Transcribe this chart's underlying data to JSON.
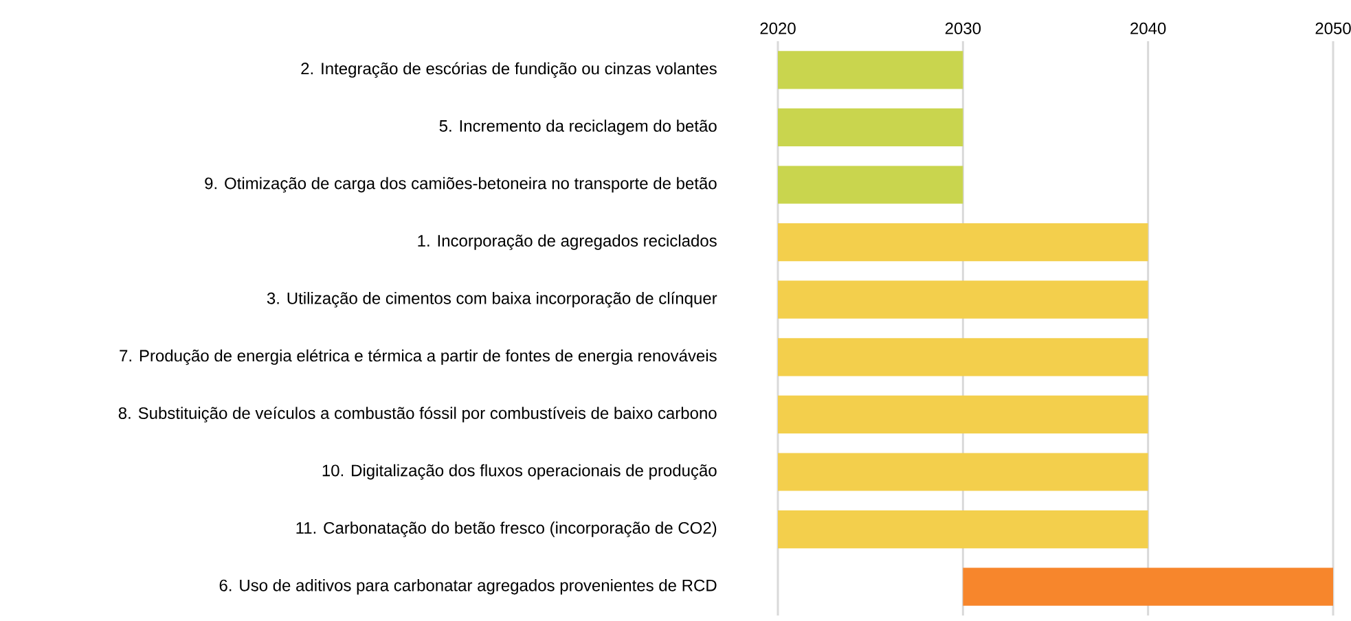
{
  "chart_data": {
    "type": "bar",
    "orientation": "horizontal",
    "categories": [
      "2. Integração de escórias de fundição ou cinzas volantes",
      "5. Incremento da reciclagem do betão",
      "9. Otimização de carga dos camiões-betoneira no transporte de betão",
      "1. Incorporação de agregados reciclados",
      "3. Utilização de cimentos com baixa incorporação de clínquer",
      "7. Produção de energia elétrica e térmica a partir de fontes de energia renováveis",
      "8. Substituição de veículos a combustão fóssil por combustíveis de baixo carbono",
      "10. Digitalização dos fluxos operacionais de produção",
      "11. Carbonatação do betão fresco (incorporação de CO2)",
      "6. Uso de aditivos para carbonatar agregados provenientes de RCD"
    ],
    "base": [
      2020,
      2020,
      2020,
      2020,
      2020,
      2020,
      2020,
      2020,
      2020,
      2030
    ],
    "values": [
      10,
      10,
      10,
      20,
      20,
      20,
      20,
      20,
      20,
      20
    ],
    "colors": [
      "#c9d54e",
      "#c9d54e",
      "#c9d54e",
      "#f3cf4c",
      "#f3cf4c",
      "#f3cf4c",
      "#f3cf4c",
      "#f3cf4c",
      "#f3cf4c",
      "#f7862c"
    ],
    "xlim": [
      2020,
      2050
    ],
    "xticks": [
      2020,
      2030,
      2040,
      2050
    ],
    "grid": "x"
  }
}
